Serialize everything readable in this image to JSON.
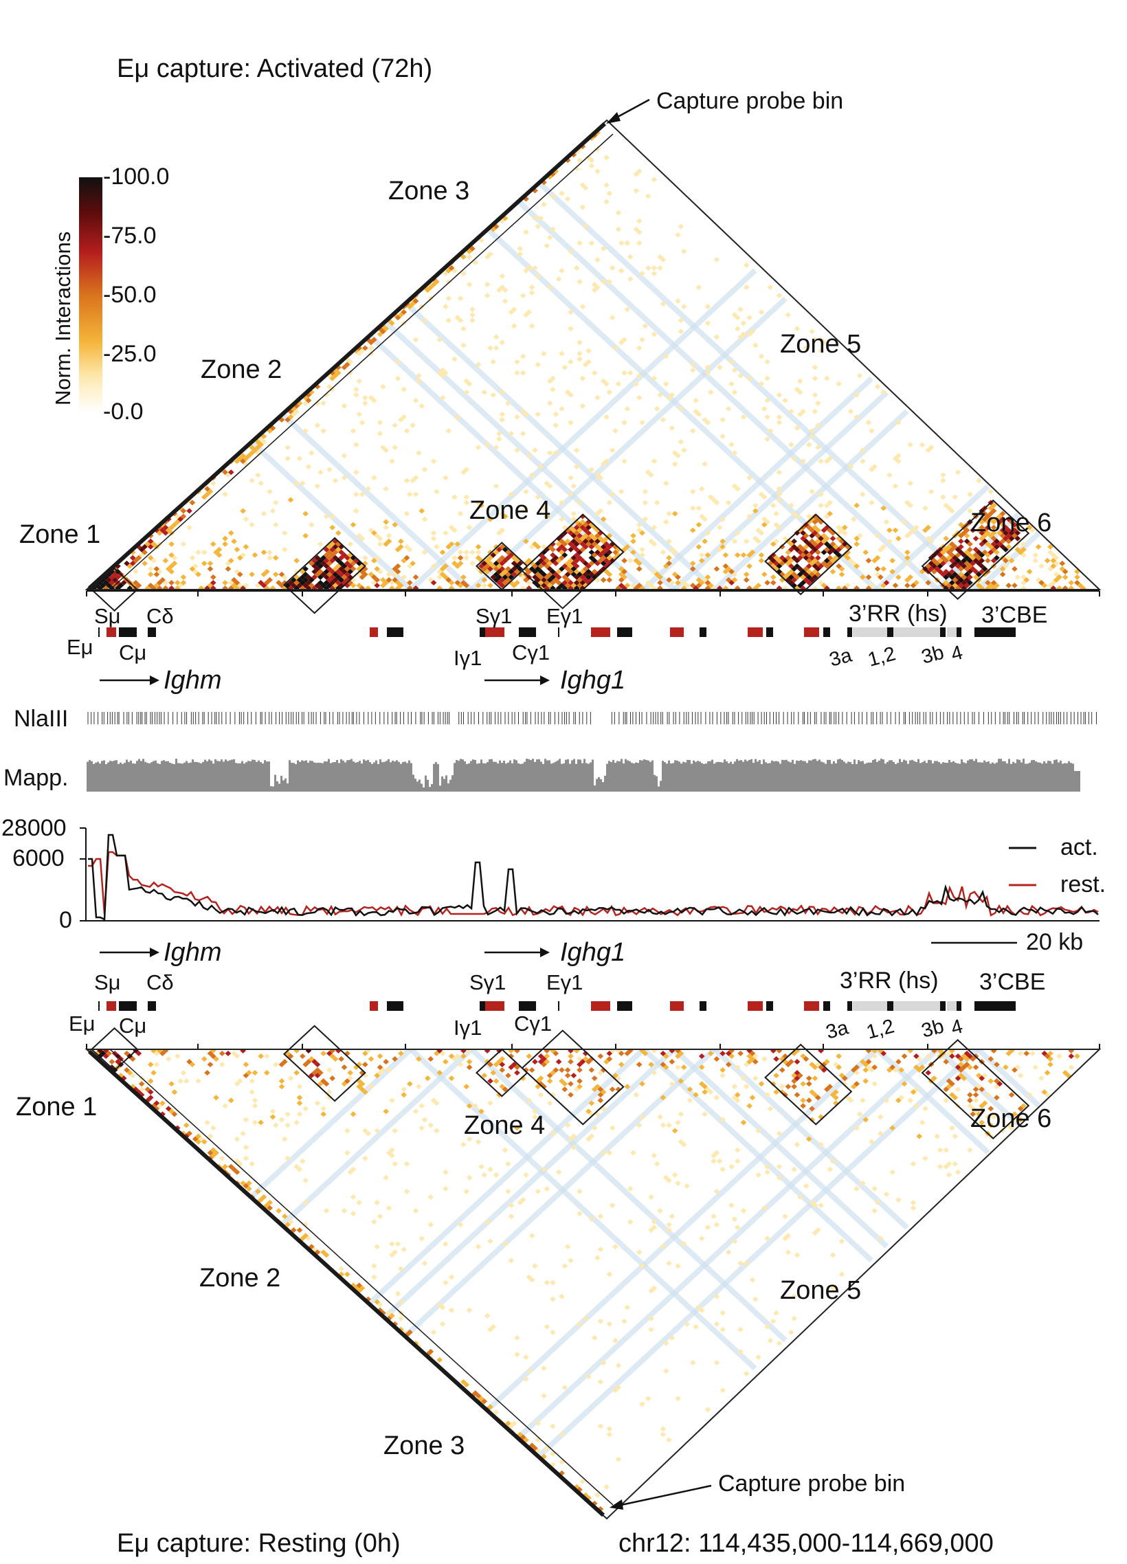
{
  "titles": {
    "top": "Eμ capture: Activated (72h)",
    "bottom": "Eμ capture: Resting (0h)",
    "coords": "chr12: 114,435,000-114,669,000"
  },
  "colorbar": {
    "label": "Norm. Interactions",
    "ticks": [
      "-100.0",
      "-75.0",
      "-50.0",
      "-25.0",
      "-0.0"
    ],
    "colors": [
      "#ffffff",
      "#fde9b0",
      "#f5b53a",
      "#d9731c",
      "#b51e1e",
      "#5c0c0c",
      "#111111"
    ]
  },
  "probe_label": "Capture probe bin",
  "zones": [
    "Zone 1",
    "Zone 2",
    "Zone 3",
    "Zone 4",
    "Zone 5",
    "Zone 6"
  ],
  "annotation": {
    "upper_labels": [
      "Sμ",
      "Cδ",
      "Sγ1",
      "Eγ1",
      "3’RR (hs)",
      "3’CBE"
    ],
    "lower_labels": [
      "Eμ",
      "Cμ",
      "Iγ1",
      "Cγ1",
      "3a",
      "1,2",
      "3b",
      "4"
    ],
    "genes": [
      "Ighm",
      "Ighg1"
    ]
  },
  "tracks": {
    "nlaiii": "NlaIII",
    "mapp": "Mapp."
  },
  "profile": {
    "yticks": [
      "28000",
      "6000",
      "0"
    ],
    "legend": [
      "act.",
      "rest."
    ],
    "scale": "20 kb",
    "colors": {
      "act": "#111111",
      "rest": "#b5231f"
    }
  },
  "zone_colors": {
    "frame": "#1a1a1a",
    "stripe": "#cfe2ef"
  }
}
